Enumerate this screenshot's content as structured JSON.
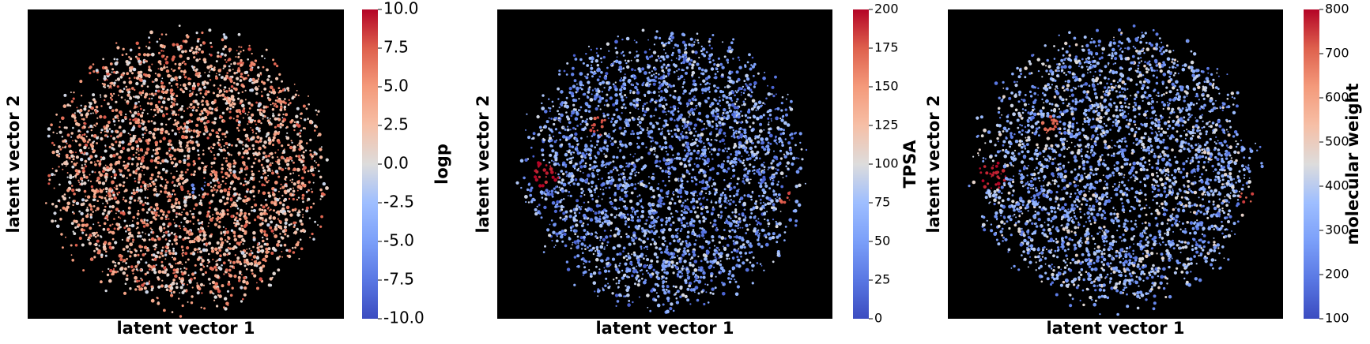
{
  "chart_data": [
    {
      "type": "scatter",
      "title": "",
      "xlabel": "latent vector 1",
      "ylabel": "latent vector 2",
      "x_tick_labels_visible": false,
      "y_tick_labels_visible": false,
      "background": "#000000",
      "colormap": "coolwarm",
      "colorbar": {
        "label": "logp",
        "min": -10.0,
        "max": 10.0,
        "ticks": [
          "-10.0",
          "-7.5",
          "-5.0",
          "-2.5",
          "0.0",
          "2.5",
          "5.0",
          "7.5",
          "10.0"
        ],
        "tick_values": [
          -10,
          -7.5,
          -5,
          -2.5,
          0,
          2.5,
          5,
          7.5,
          10
        ]
      },
      "predominant_value": 3.5,
      "hotspots": [
        {
          "cx": 0.08,
          "cy": 0.12,
          "r": 0.06,
          "value": -6.0
        }
      ]
    },
    {
      "type": "scatter",
      "title": "",
      "xlabel": "latent vector 1",
      "ylabel": "latent vector 2",
      "x_tick_labels_visible": false,
      "y_tick_labels_visible": false,
      "background": "#000000",
      "colormap": "coolwarm",
      "colorbar": {
        "label": "TPSA",
        "min": 0,
        "max": 200,
        "ticks": [
          "0",
          "25",
          "50",
          "75",
          "100",
          "125",
          "150",
          "175",
          "200"
        ],
        "tick_values": [
          0,
          25,
          50,
          75,
          100,
          125,
          150,
          175,
          200
        ]
      },
      "predominant_value": 55,
      "hotspots": [
        {
          "cx": -0.83,
          "cy": 0.05,
          "r": 0.1,
          "value": 195
        },
        {
          "cx": -0.45,
          "cy": -0.3,
          "r": 0.07,
          "value": 180
        },
        {
          "cx": 0.85,
          "cy": 0.2,
          "r": 0.06,
          "value": 175
        }
      ]
    },
    {
      "type": "scatter",
      "title": "",
      "xlabel": "latent vector 1",
      "ylabel": "latent vector 2",
      "x_tick_labels_visible": false,
      "y_tick_labels_visible": false,
      "background": "#000000",
      "colormap": "coolwarm",
      "colorbar": {
        "label": "molecular weight",
        "min": 100,
        "max": 800,
        "ticks": [
          "100",
          "200",
          "300",
          "400",
          "500",
          "600",
          "700",
          "800"
        ],
        "tick_values": [
          100,
          200,
          300,
          400,
          500,
          600,
          700,
          800
        ]
      },
      "predominant_value": 330,
      "hotspots": [
        {
          "cx": -0.85,
          "cy": 0.05,
          "r": 0.1,
          "value": 780
        },
        {
          "cx": -0.45,
          "cy": -0.3,
          "r": 0.06,
          "value": 700
        },
        {
          "cx": 0.9,
          "cy": 0.2,
          "r": 0.05,
          "value": 720
        }
      ]
    }
  ]
}
